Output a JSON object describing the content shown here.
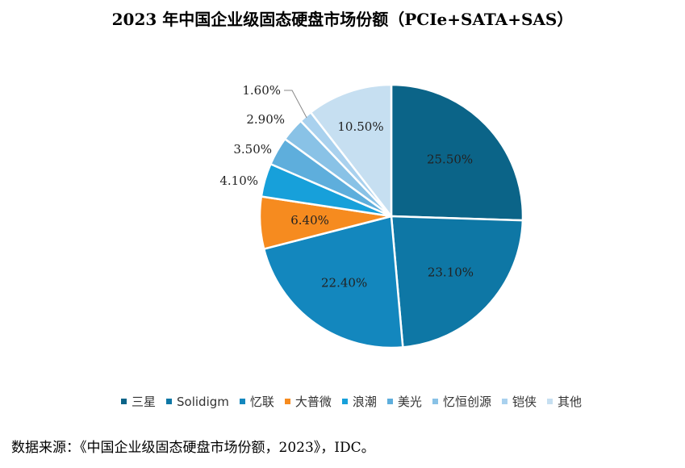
{
  "chart_data": {
    "type": "pie",
    "title": "2023 年中国企业级固态硬盘市场份额（PCIe+SATA+SAS）",
    "slices": [
      {
        "name": "三星",
        "value": 25.5,
        "label": "25.50%",
        "color": "#0B6488"
      },
      {
        "name": "Solidigm",
        "value": 23.1,
        "label": "23.10%",
        "color": "#0E77A5"
      },
      {
        "name": "忆联",
        "value": 22.4,
        "label": "22.40%",
        "color": "#1387BE"
      },
      {
        "name": "大普微",
        "value": 6.4,
        "label": "6.40%",
        "color": "#F68B1F"
      },
      {
        "name": "浪潮",
        "value": 4.1,
        "label": "4.10%",
        "color": "#17A0DA"
      },
      {
        "name": "美光",
        "value": 3.5,
        "label": "3.50%",
        "color": "#5EAEDC"
      },
      {
        "name": "忆恒创源",
        "value": 2.9,
        "label": "2.90%",
        "color": "#89C2E6"
      },
      {
        "name": "铠侠",
        "value": 1.6,
        "label": "1.60%",
        "color": "#A9D1EE"
      },
      {
        "name": "其他",
        "value": 10.5,
        "label": "10.50%",
        "color": "#C6DFF1"
      }
    ],
    "legend_position": "bottom"
  },
  "source": "数据来源：《中国企业级固态硬盘市场份额，2023》，IDC。"
}
